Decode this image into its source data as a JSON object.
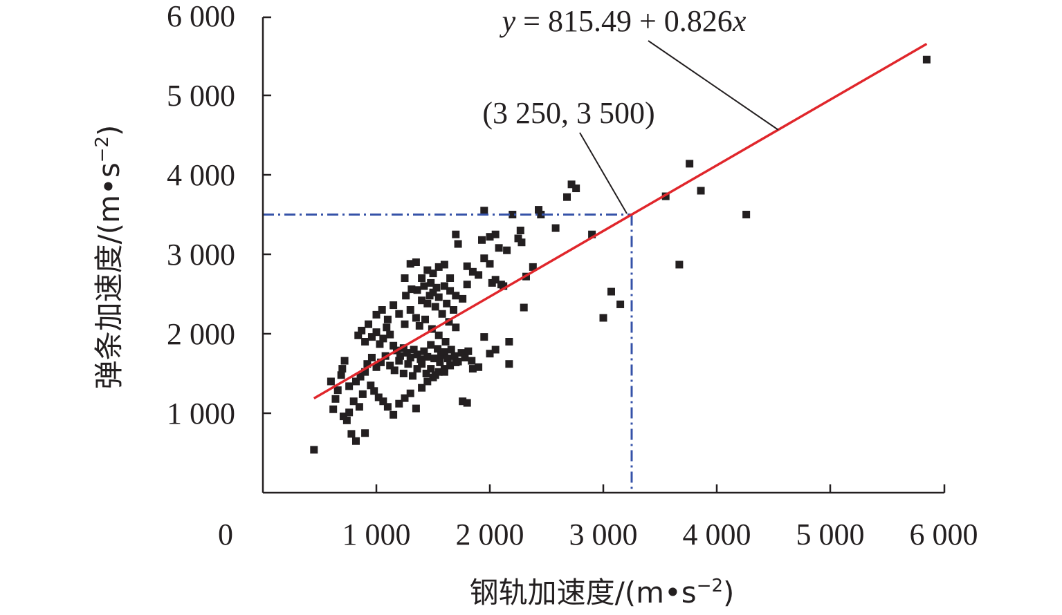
{
  "chart_data": {
    "type": "scatter",
    "xlabel": "钢轨加速度/(m•s",
    "ylabel": "弹条加速度/(m•s",
    "units_sup": "−2",
    "units_close": ")",
    "origin_label": "0",
    "xlim": [
      0,
      6000
    ],
    "ylim": [
      0,
      6000
    ],
    "x_ticks": [
      1000,
      2000,
      3000,
      4000,
      5000,
      6000
    ],
    "x_tick_labels": [
      "1 000",
      "2 000",
      "3 000",
      "4 000",
      "5 000",
      "6 000"
    ],
    "y_ticks": [
      1000,
      2000,
      3000,
      4000,
      5000,
      6000
    ],
    "y_tick_labels": [
      "1 000",
      "2 000",
      "3 000",
      "4 000",
      "5 000",
      "6 000"
    ],
    "grid": false,
    "legend": "none",
    "colors": {
      "points": "#231f20",
      "fit_line": "#e0262b",
      "reference": "#3552a8",
      "axis": "#231f20"
    },
    "fit_line": {
      "intercept": 815.49,
      "slope": 0.826,
      "x_range": [
        450,
        5850
      ],
      "equation_label": {
        "y": "y",
        "eq": " = 815.49 + 0.826",
        "x": "x"
      }
    },
    "reference_point": {
      "x": 3250,
      "y": 3500,
      "label": "(3 250, 3 500)"
    },
    "points": [
      [
        450,
        540
      ],
      [
        600,
        1400
      ],
      [
        620,
        1050
      ],
      [
        640,
        1180
      ],
      [
        660,
        1290
      ],
      [
        690,
        1480
      ],
      [
        700,
        1560
      ],
      [
        720,
        1660
      ],
      [
        710,
        960
      ],
      [
        740,
        910
      ],
      [
        760,
        1010
      ],
      [
        780,
        740
      ],
      [
        820,
        650
      ],
      [
        900,
        750
      ],
      [
        800,
        1150
      ],
      [
        850,
        1080
      ],
      [
        880,
        1240
      ],
      [
        760,
        1340
      ],
      [
        820,
        1400
      ],
      [
        860,
        1460
      ],
      [
        900,
        1520
      ],
      [
        950,
        1350
      ],
      [
        980,
        1280
      ],
      [
        1020,
        1200
      ],
      [
        1060,
        1150
      ],
      [
        1100,
        1080
      ],
      [
        1150,
        980
      ],
      [
        1200,
        1120
      ],
      [
        1250,
        1190
      ],
      [
        1300,
        1250
      ],
      [
        1350,
        1060
      ],
      [
        1400,
        1320
      ],
      [
        1450,
        1400
      ],
      [
        1500,
        1450
      ],
      [
        1550,
        1520
      ],
      [
        1600,
        1560
      ],
      [
        1650,
        1600
      ],
      [
        1700,
        1640
      ],
      [
        1760,
        1150
      ],
      [
        1800,
        1130
      ],
      [
        1850,
        1560
      ],
      [
        1900,
        1580
      ],
      [
        840,
        1980
      ],
      [
        870,
        2040
      ],
      [
        900,
        1900
      ],
      [
        930,
        2120
      ],
      [
        960,
        1960
      ],
      [
        1000,
        2020
      ],
      [
        1030,
        1870
      ],
      [
        1060,
        1940
      ],
      [
        1090,
        2080
      ],
      [
        1120,
        1990
      ],
      [
        1150,
        1850
      ],
      [
        1180,
        1790
      ],
      [
        1210,
        1720
      ],
      [
        1240,
        1820
      ],
      [
        1270,
        1760
      ],
      [
        1300,
        1700
      ],
      [
        1330,
        1800
      ],
      [
        1360,
        1740
      ],
      [
        1390,
        1680
      ],
      [
        1420,
        1780
      ],
      [
        1450,
        1710
      ],
      [
        1480,
        1860
      ],
      [
        1510,
        1690
      ],
      [
        1540,
        1810
      ],
      [
        1570,
        1730
      ],
      [
        1600,
        1770
      ],
      [
        1630,
        1690
      ],
      [
        1660,
        1800
      ],
      [
        1690,
        1720
      ],
      [
        1720,
        1650
      ],
      [
        1750,
        1760
      ],
      [
        1780,
        1700
      ],
      [
        1810,
        1780
      ],
      [
        1840,
        1660
      ],
      [
        920,
        1620
      ],
      [
        960,
        1700
      ],
      [
        1000,
        1580
      ],
      [
        1040,
        1640
      ],
      [
        1080,
        1720
      ],
      [
        1120,
        1600
      ],
      [
        1160,
        1540
      ],
      [
        1200,
        1660
      ],
      [
        1240,
        1500
      ],
      [
        1280,
        1620
      ],
      [
        1320,
        1470
      ],
      [
        1360,
        1560
      ],
      [
        1400,
        1620
      ],
      [
        1440,
        1500
      ],
      [
        1480,
        1560
      ],
      [
        1520,
        1480
      ],
      [
        1560,
        1640
      ],
      [
        1600,
        1520
      ],
      [
        1000,
        2240
      ],
      [
        1050,
        2300
      ],
      [
        1100,
        2180
      ],
      [
        1150,
        2360
      ],
      [
        1200,
        2250
      ],
      [
        1250,
        2120
      ],
      [
        1300,
        2300
      ],
      [
        1350,
        2200
      ],
      [
        1400,
        2420
      ],
      [
        1450,
        2380
      ],
      [
        1500,
        2520
      ],
      [
        1550,
        2460
      ],
      [
        1600,
        2600
      ],
      [
        1650,
        2540
      ],
      [
        1700,
        2480
      ],
      [
        1400,
        2700
      ],
      [
        1450,
        2800
      ],
      [
        1500,
        2760
      ],
      [
        1550,
        2840
      ],
      [
        1600,
        2870
      ],
      [
        1650,
        2700
      ],
      [
        1350,
        2900
      ],
      [
        1300,
        2880
      ],
      [
        1250,
        2700
      ],
      [
        1480,
        2640
      ],
      [
        1530,
        2580
      ],
      [
        1620,
        2380
      ],
      [
        1680,
        2300
      ],
      [
        1360,
        2550
      ],
      [
        1420,
        2600
      ],
      [
        1470,
        2480
      ],
      [
        1520,
        2340
      ],
      [
        1580,
        2250
      ],
      [
        1640,
        2150
      ],
      [
        1700,
        2080
      ],
      [
        1260,
        2480
      ],
      [
        1310,
        2560
      ],
      [
        1380,
        2100
      ],
      [
        1430,
        2180
      ],
      [
        1490,
        2060
      ],
      [
        1550,
        1980
      ],
      [
        1610,
        1900
      ],
      [
        1700,
        3250
      ],
      [
        1720,
        3130
      ],
      [
        1950,
        3550
      ],
      [
        2000,
        3220
      ],
      [
        2050,
        3250
      ],
      [
        1930,
        3180
      ],
      [
        2080,
        3080
      ],
      [
        2150,
        3050
      ],
      [
        2200,
        3500
      ],
      [
        2250,
        3200
      ],
      [
        2270,
        3300
      ],
      [
        2280,
        3150
      ],
      [
        1950,
        2950
      ],
      [
        2000,
        2880
      ],
      [
        2050,
        2680
      ],
      [
        2100,
        2620
      ],
      [
        2020,
        2640
      ],
      [
        2120,
        2600
      ],
      [
        1900,
        2740
      ],
      [
        1850,
        2780
      ],
      [
        1800,
        2850
      ],
      [
        1760,
        2440
      ],
      [
        1800,
        2620
      ],
      [
        1950,
        1960
      ],
      [
        2000,
        1750
      ],
      [
        2050,
        1800
      ],
      [
        2170,
        1900
      ],
      [
        2170,
        1620
      ],
      [
        2300,
        2330
      ],
      [
        2320,
        2720
      ],
      [
        2380,
        2840
      ],
      [
        2430,
        3560
      ],
      [
        2450,
        3500
      ],
      [
        2580,
        3330
      ],
      [
        2680,
        3720
      ],
      [
        2720,
        3880
      ],
      [
        2760,
        3830
      ],
      [
        2900,
        3250
      ],
      [
        3000,
        2200
      ],
      [
        3070,
        2530
      ],
      [
        3150,
        2370
      ],
      [
        3550,
        3730
      ],
      [
        3670,
        2870
      ],
      [
        3760,
        4140
      ],
      [
        3860,
        3800
      ],
      [
        4260,
        3500
      ],
      [
        5850,
        5450
      ]
    ]
  }
}
